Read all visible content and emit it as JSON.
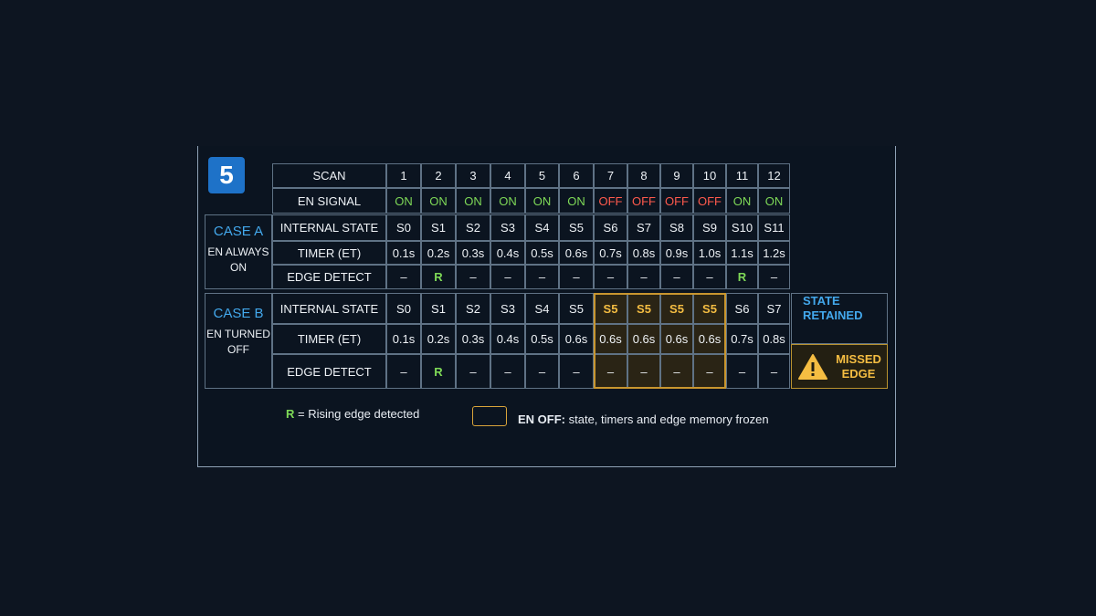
{
  "step_number": "5",
  "header": {
    "scan_label": "SCAN",
    "scans": [
      "1",
      "2",
      "3",
      "4",
      "5",
      "6",
      "7",
      "8",
      "9",
      "10",
      "11",
      "12"
    ]
  },
  "en_signal": {
    "label": "EN SIGNAL",
    "values": [
      "ON",
      "ON",
      "ON",
      "ON",
      "ON",
      "ON",
      "OFF",
      "OFF",
      "OFF",
      "OFF",
      "ON",
      "ON"
    ]
  },
  "case_a": {
    "title": "CASE A",
    "subtitle_line1": "EN ALWAYS",
    "subtitle_line2": "ON",
    "state_label": "INTERNAL STATE",
    "states": [
      "S0",
      "S1",
      "S2",
      "S3",
      "S4",
      "S5",
      "S6",
      "S7",
      "S8",
      "S9",
      "S10",
      "S11"
    ],
    "timer_label": "TIMER (ET)",
    "timers": [
      "0.1s",
      "0.2s",
      "0.3s",
      "0.4s",
      "0.5s",
      "0.6s",
      "0.7s",
      "0.8s",
      "0.9s",
      "1.0s",
      "1.1s",
      "1.2s"
    ],
    "edge_label": "EDGE DETECT",
    "edges": [
      "–",
      "R",
      "–",
      "–",
      "–",
      "–",
      "–",
      "–",
      "–",
      "–",
      "R",
      "–"
    ]
  },
  "case_b": {
    "title": "CASE B",
    "subtitle_line1": "EN TURNED",
    "subtitle_line2": "OFF",
    "state_label": "INTERNAL STATE",
    "states": [
      "S0",
      "S1",
      "S2",
      "S3",
      "S4",
      "S5",
      "S5",
      "S5",
      "S5",
      "S5",
      "S6",
      "S7"
    ],
    "timer_label": "TIMER (ET)",
    "timers": [
      "0.1s",
      "0.2s",
      "0.3s",
      "0.4s",
      "0.5s",
      "0.6s",
      "0.6s",
      "0.6s",
      "0.6s",
      "0.6s",
      "0.7s",
      "0.8s"
    ],
    "edge_label": "EDGE DETECT",
    "edges": [
      "–",
      "R",
      "–",
      "–",
      "–",
      "–",
      "–",
      "–",
      "–",
      "–",
      "–",
      "–"
    ],
    "note_retained_line1": "STATE",
    "note_retained_line2": "RETAINED",
    "note_missed_line1": "MISSED",
    "note_missed_line2": "EDGE"
  },
  "legend": {
    "rising_symbol": "R",
    "rising_text": "= Rising edge detected",
    "frozen_bold": "EN OFF:",
    "frozen_text": "state, timers and edge memory frozen"
  },
  "colors": {
    "on": "#7ed957",
    "off": "#ff5a4d",
    "accent_blue": "#43a8ec",
    "frozen_amber": "#f5bd42",
    "badge_blue": "#1e72c8"
  }
}
